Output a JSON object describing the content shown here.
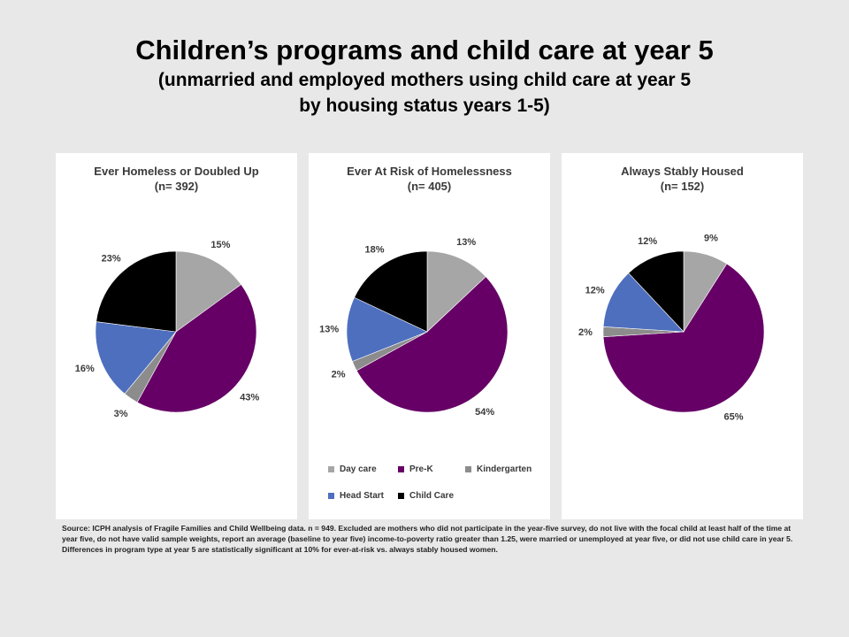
{
  "header": {
    "title": "Children’s programs and child care at year 5",
    "subtitle_line1": "(unmarried and employed mothers using child care at year 5",
    "subtitle_line2": "by housing status years 1-5)"
  },
  "chart_data": [
    {
      "type": "pie",
      "title": "Ever Homeless or Doubled Up",
      "subtitle": "(n= 392)",
      "categories": [
        "Day care",
        "Pre-K",
        "Kindergarten",
        "Head Start",
        "Child Care"
      ],
      "values": [
        15,
        43,
        3,
        16,
        23
      ],
      "labels": [
        "15%",
        "43%",
        "3%",
        "16%",
        "23%"
      ]
    },
    {
      "type": "pie",
      "title": "Ever At Risk of Homelessness",
      "subtitle": "(n= 405)",
      "categories": [
        "Day care",
        "Pre-K",
        "Kindergarten",
        "Head Start",
        "Child Care"
      ],
      "values": [
        13,
        54,
        2,
        13,
        18
      ],
      "labels": [
        "13%",
        "54%",
        "2%",
        "13%",
        "18%"
      ]
    },
    {
      "type": "pie",
      "title": "Always Stably Housed",
      "subtitle": "(n= 152)",
      "categories": [
        "Day care",
        "Pre-K",
        "Kindergarten",
        "Head Start",
        "Child Care"
      ],
      "values": [
        9,
        65,
        2,
        12,
        12
      ],
      "labels": [
        "9%",
        "65%",
        "2%",
        "12%",
        "12%"
      ]
    }
  ],
  "legend": {
    "items": [
      {
        "label": "Day care",
        "color": "#a6a6a6"
      },
      {
        "label": "Pre-K",
        "color": "#660066"
      },
      {
        "label": "Kindergarten",
        "color": "#8c8c8c"
      },
      {
        "label": "Head Start",
        "color": "#4e6fbe"
      },
      {
        "label": "Child Care",
        "color": "#000000"
      }
    ],
    "placement": "bottom"
  },
  "source": "Source: ICPH analysis of Fragile Families and Child Wellbeing data. n = 949. Excluded are mothers who did not participate in the year-five survey, do not live with the focal child at least half of the time at year five, do not have valid sample weights, report an average (baseline to year five) income-to-poverty ratio greater than 1.25, were married or unemployed at year five, or did not use child care in year 5. Differences in program type at year 5 are statistically significant at 10% for ever-at-risk vs. always stably housed women."
}
